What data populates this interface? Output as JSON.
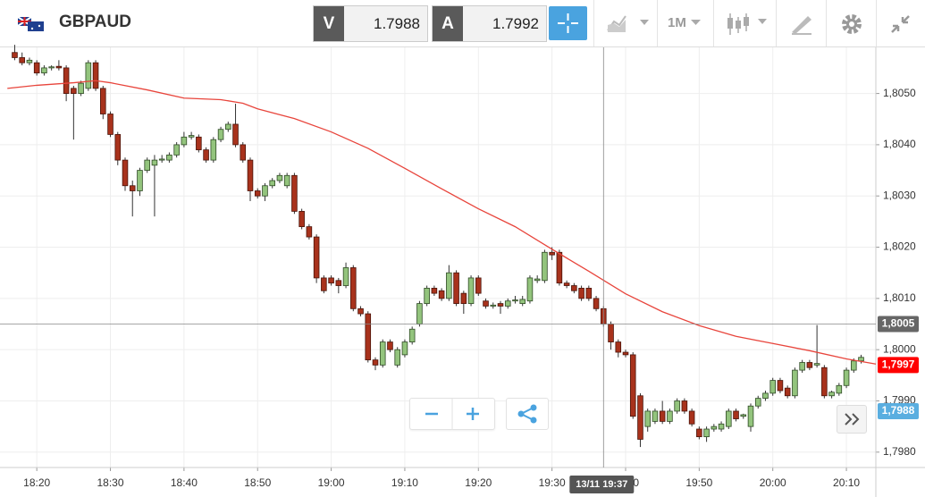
{
  "header": {
    "symbol": "GBPAUD",
    "bid_label": "V",
    "bid": "1.7988",
    "ask_label": "A",
    "ask": "1.7992",
    "timeframe": "1M"
  },
  "chart_data": {
    "type": "candlestick",
    "x": [
      "18:17",
      "18:18",
      "18:19",
      "18:20",
      "18:21",
      "18:22",
      "18:23",
      "18:24",
      "18:25",
      "18:26",
      "18:27",
      "18:28",
      "18:29",
      "18:30",
      "18:31",
      "18:32",
      "18:33",
      "18:34",
      "18:35",
      "18:36",
      "18:37",
      "18:38",
      "18:39",
      "18:40",
      "18:41",
      "18:42",
      "18:43",
      "18:44",
      "18:45",
      "18:46",
      "18:47",
      "18:48",
      "18:49",
      "18:50",
      "18:51",
      "18:52",
      "18:53",
      "18:54",
      "18:55",
      "18:56",
      "18:57",
      "18:58",
      "18:59",
      "19:00",
      "19:01",
      "19:02",
      "19:03",
      "19:04",
      "19:05",
      "19:06",
      "19:07",
      "19:08",
      "19:09",
      "19:10",
      "19:11",
      "19:12",
      "19:13",
      "19:14",
      "19:15",
      "19:16",
      "19:17",
      "19:18",
      "19:19",
      "19:20",
      "19:21",
      "19:22",
      "19:23",
      "19:24",
      "19:25",
      "19:26",
      "19:27",
      "19:28",
      "19:29",
      "19:30",
      "19:31",
      "19:32",
      "19:33",
      "19:34",
      "19:35",
      "19:36",
      "19:37",
      "19:38",
      "19:39",
      "19:40",
      "19:41",
      "19:42",
      "19:43",
      "19:44",
      "19:45",
      "19:46",
      "19:47",
      "19:48",
      "19:49",
      "19:50",
      "19:51",
      "19:52",
      "19:53",
      "19:54",
      "19:55",
      "19:56",
      "19:57",
      "19:58",
      "19:59",
      "20:00",
      "20:01",
      "20:02",
      "20:03",
      "20:04",
      "20:05",
      "20:06",
      "20:07",
      "20:08",
      "20:09",
      "20:10",
      "20:11",
      "20:12"
    ],
    "open": [
      1.8058,
      1.8057,
      1.8056,
      1.8056,
      1.8054,
      1.8055,
      1.80553,
      1.8055,
      1.8051,
      1.805,
      1.8051,
      1.8056,
      1.8051,
      1.8046,
      1.8042,
      1.8037,
      1.8032,
      1.8031,
      1.8035,
      1.8036,
      1.8037,
      1.8037,
      1.8038,
      1.804,
      1.80415,
      1.80415,
      1.8039,
      1.8037,
      1.8041,
      1.8043,
      1.8044,
      1.804,
      1.8037,
      1.8031,
      1.803,
      1.8032,
      1.8033,
      1.8032,
      1.8034,
      1.8027,
      1.8024,
      1.8022,
      1.8014,
      1.8014,
      1.80135,
      1.80125,
      1.8016,
      1.8008,
      1.8007,
      1.7998,
      1.7997,
      1.80015,
      1.7997,
      1.7999,
      1.80015,
      1.8005,
      1.8009,
      1.8012,
      1.80115,
      1.801,
      1.8015,
      1.8011,
      1.8009,
      1.8014,
      1.80095,
      1.80085,
      1.8009,
      1.80085,
      1.80095,
      1.8009,
      1.80095,
      1.80135,
      1.80135,
      1.8019,
      1.8019,
      1.8013,
      1.80125,
      1.8012,
      1.8012,
      1.801,
      1.8008,
      1.8005,
      1.80015,
      1.79995,
      1.7999,
      1.7991,
      1.7985,
      1.7986,
      1.7988,
      1.7986,
      1.7988,
      1.799,
      1.7988,
      1.79845,
      1.7983,
      1.79845,
      1.79845,
      1.7985,
      1.7988,
      1.7987,
      1.7985,
      1.7989,
      1.79905,
      1.79915,
      1.7994,
      1.79925,
      1.7991,
      1.7996,
      1.79975,
      1.7997,
      1.79965,
      1.7991,
      1.79915,
      1.7993,
      1.7996,
      1.79978
    ],
    "high": [
      1.80595,
      1.8058,
      1.8057,
      1.80565,
      1.80555,
      1.80555,
      1.80565,
      1.80555,
      1.80515,
      1.80525,
      1.80565,
      1.80565,
      1.80515,
      1.80465,
      1.80425,
      1.80375,
      1.8033,
      1.80355,
      1.80375,
      1.8038,
      1.8038,
      1.80385,
      1.80405,
      1.80425,
      1.80425,
      1.8042,
      1.80395,
      1.80415,
      1.80435,
      1.80445,
      1.8048,
      1.80405,
      1.80375,
      1.80315,
      1.80325,
      1.80335,
      1.80345,
      1.80345,
      1.80345,
      1.80275,
      1.80245,
      1.80225,
      1.80145,
      1.80145,
      1.8014,
      1.8017,
      1.80165,
      1.80085,
      1.80075,
      1.79985,
      1.8002,
      1.8002,
      1.80005,
      1.8002,
      1.80045,
      1.80095,
      1.80125,
      1.80125,
      1.8012,
      1.80165,
      1.80155,
      1.80115,
      1.80145,
      1.80145,
      1.801,
      1.80092,
      1.80095,
      1.801,
      1.80105,
      1.80105,
      1.80145,
      1.80145,
      1.80195,
      1.802,
      1.80195,
      1.80135,
      1.8013,
      1.80125,
      1.80125,
      1.80105,
      1.80085,
      1.80055,
      1.8002,
      1.8,
      1.79995,
      1.79915,
      1.79885,
      1.79885,
      1.799,
      1.79885,
      1.79905,
      1.79905,
      1.79885,
      1.7985,
      1.7985,
      1.79855,
      1.7986,
      1.79885,
      1.79885,
      1.79875,
      1.79895,
      1.7991,
      1.7992,
      1.79945,
      1.79945,
      1.7993,
      1.79965,
      1.7998,
      1.7998,
      1.80048,
      1.7997,
      1.7992,
      1.79935,
      1.79965,
      1.79983,
      1.7999
    ],
    "low": [
      1.80565,
      1.80555,
      1.80555,
      1.80535,
      1.80535,
      1.80545,
      1.80545,
      1.80485,
      1.8041,
      1.80495,
      1.80505,
      1.80505,
      1.8045,
      1.80415,
      1.8036,
      1.8031,
      1.8026,
      1.803,
      1.80345,
      1.8026,
      1.80365,
      1.80365,
      1.80375,
      1.80395,
      1.8041,
      1.80385,
      1.80365,
      1.80365,
      1.80405,
      1.80425,
      1.80395,
      1.80365,
      1.8029,
      1.80295,
      1.8029,
      1.80315,
      1.80325,
      1.80315,
      1.80265,
      1.80235,
      1.80215,
      1.8013,
      1.8011,
      1.80125,
      1.8011,
      1.8012,
      1.80075,
      1.80065,
      1.79975,
      1.7996,
      1.79965,
      1.79995,
      1.79965,
      1.79985,
      1.8001,
      1.80045,
      1.80085,
      1.80105,
      1.80095,
      1.80095,
      1.80085,
      1.8007,
      1.80085,
      1.80105,
      1.8008,
      1.8008,
      1.8007,
      1.8008,
      1.8009,
      1.80085,
      1.8009,
      1.8013,
      1.8013,
      1.80175,
      1.80125,
      1.8012,
      1.8011,
      1.80095,
      1.80095,
      1.80075,
      1.80045,
      1.8,
      1.79985,
      1.79985,
      1.79865,
      1.7981,
      1.7984,
      1.79855,
      1.79855,
      1.79855,
      1.79875,
      1.79875,
      1.7985,
      1.79825,
      1.7982,
      1.7984,
      1.7984,
      1.79845,
      1.7986,
      1.79865,
      1.7984,
      1.79885,
      1.799,
      1.7991,
      1.79915,
      1.79905,
      1.79905,
      1.79955,
      1.7996,
      1.79965,
      1.79905,
      1.79905,
      1.7991,
      1.79925,
      1.79955,
      1.79973
    ],
    "close": [
      1.8057,
      1.8056,
      1.80565,
      1.8054,
      1.8055,
      1.80552,
      1.8055,
      1.805,
      1.805,
      1.8052,
      1.8056,
      1.8051,
      1.8046,
      1.8042,
      1.8037,
      1.8032,
      1.8031,
      1.8035,
      1.8037,
      1.8037,
      1.80372,
      1.8038,
      1.804,
      1.80415,
      1.80418,
      1.8039,
      1.8037,
      1.8041,
      1.8043,
      1.8044,
      1.804,
      1.8037,
      1.8031,
      1.803,
      1.8032,
      1.8033,
      1.8034,
      1.8034,
      1.8027,
      1.8024,
      1.8022,
      1.8014,
      1.80115,
      1.8013,
      1.80125,
      1.8016,
      1.8008,
      1.8007,
      1.7998,
      1.7997,
      1.80015,
      1.8,
      1.8,
      1.80015,
      1.8004,
      1.8009,
      1.8012,
      1.8011,
      1.801,
      1.8015,
      1.8009,
      1.8009,
      1.8014,
      1.8011,
      1.80085,
      1.80087,
      1.80085,
      1.80095,
      1.80097,
      1.80098,
      1.8014,
      1.80138,
      1.8019,
      1.80185,
      1.8013,
      1.80125,
      1.80115,
      1.801,
      1.801,
      1.8008,
      1.8005,
      1.80015,
      1.79995,
      1.7999,
      1.7987,
      1.79825,
      1.7988,
      1.7988,
      1.7986,
      1.7988,
      1.799,
      1.7988,
      1.79855,
      1.7983,
      1.79845,
      1.7985,
      1.79855,
      1.7988,
      1.79865,
      1.79873,
      1.7989,
      1.79905,
      1.79915,
      1.7994,
      1.7992,
      1.7991,
      1.7996,
      1.79975,
      1.79965,
      1.79973,
      1.7991,
      1.79917,
      1.7993,
      1.7996,
      1.79978,
      1.79985
    ],
    "up_color": "#93c47d",
    "down_color": "#a8321c",
    "ma": {
      "color": "#e8453c",
      "x": [
        "18:16",
        "18:20",
        "18:25",
        "18:28",
        "18:30",
        "18:35",
        "18:40",
        "18:45",
        "18:48",
        "18:50",
        "18:55",
        "19:00",
        "19:05",
        "19:10",
        "19:15",
        "19:20",
        "19:25",
        "19:30",
        "19:35",
        "19:40",
        "19:45",
        "19:50",
        "19:55",
        "20:00",
        "20:05",
        "20:10",
        "20:14"
      ],
      "values": [
        1.8051,
        1.80516,
        1.80521,
        1.80525,
        1.80521,
        1.80507,
        1.80491,
        1.80488,
        1.80481,
        1.8047,
        1.80451,
        1.80425,
        1.80393,
        1.80354,
        1.80314,
        1.80275,
        1.8024,
        1.80196,
        1.80153,
        1.80109,
        1.80074,
        1.80047,
        1.80026,
        1.80012,
        1.79998,
        1.79982,
        1.79972
      ]
    },
    "xlim": [
      "18:15",
      "20:14"
    ],
    "xticks": [
      "18:20",
      "18:30",
      "18:40",
      "18:50",
      "19:00",
      "19:10",
      "19:20",
      "19:30",
      "19:40",
      "19:50",
      "20:00",
      "20:10"
    ],
    "ylim": [
      1.7977,
      1.8059
    ],
    "yticks": [
      {
        "value": 1.798,
        "label": "1,7980"
      },
      {
        "value": 1.799,
        "label": "1,7990"
      },
      {
        "value": 1.8,
        "label": "1,8000"
      },
      {
        "value": 1.801,
        "label": "1,8010"
      },
      {
        "value": 1.802,
        "label": "1,8020"
      },
      {
        "value": 1.803,
        "label": "1,8030"
      },
      {
        "value": 1.804,
        "label": "1,8040"
      },
      {
        "value": 1.805,
        "label": "1,8050"
      }
    ],
    "grid": true,
    "crosshair": {
      "x": "19:37",
      "x_label": "13/11 19:37",
      "y": {
        "value": 1.8005,
        "label": "1,8005"
      }
    },
    "price_markers": [
      {
        "value": 1.7997,
        "label": "1,7997",
        "color": "#ff0000"
      },
      {
        "value": 1.7988,
        "label": "1,7988",
        "color": "#5aaee0"
      }
    ]
  }
}
